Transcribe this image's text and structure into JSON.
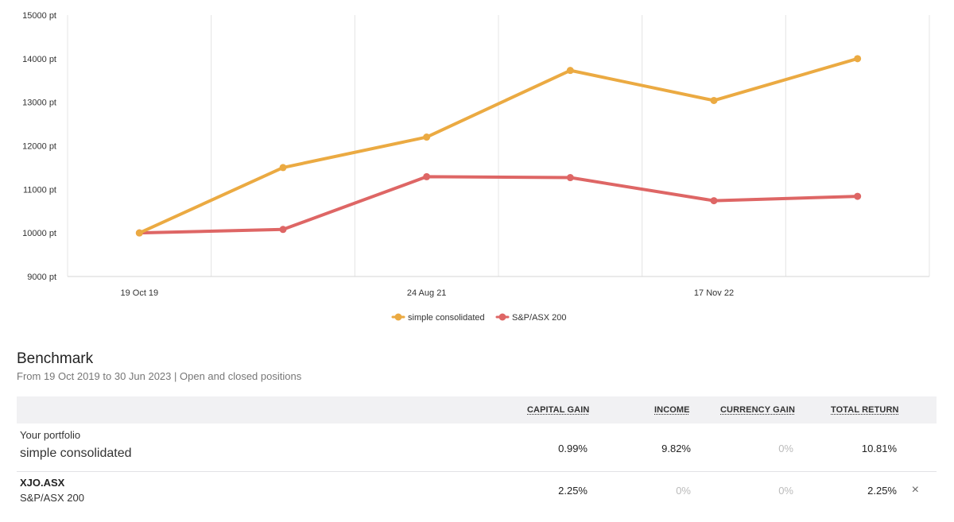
{
  "chart_data": {
    "type": "line",
    "categories": [
      "19 Oct 19",
      "",
      "24 Aug 21",
      "",
      "17 Nov 22",
      ""
    ],
    "series": [
      {
        "name": "simple consolidated",
        "color": "#EBAA42",
        "values": [
          10000,
          11500,
          12200,
          13730,
          13040,
          14000
        ]
      },
      {
        "name": "S&P/ASX 200",
        "color": "#DE6665",
        "values": [
          10000,
          10080,
          11290,
          11270,
          10740,
          10840
        ]
      }
    ],
    "ylim": [
      9000,
      15000
    ],
    "yticks": [
      15000,
      14000,
      13000,
      12000,
      11000,
      10000,
      9000
    ],
    "ytick_labels": [
      "15000 pt",
      "14000 pt",
      "13000 pt",
      "12000 pt",
      "11000 pt",
      "10000 pt",
      "9000 pt"
    ],
    "xlabels": [
      "19 Oct 19",
      "24 Aug 21",
      "17 Nov 22"
    ],
    "grid": true,
    "legend": "bottom-center"
  },
  "benchmark": {
    "title": "Benchmark",
    "subtitle": "From 19 Oct 2019 to 30 Jun 2023 | Open and closed positions",
    "columns": [
      "CAPITAL GAIN",
      "INCOME",
      "CURRENCY GAIN",
      "TOTAL RETURN"
    ],
    "rows": [
      {
        "label_top": "Your portfolio",
        "label_bottom": "simple consolidated",
        "capital_gain": "0.99%",
        "income": "9.82%",
        "currency_gain": "0%",
        "total_return": "10.81%"
      },
      {
        "label_top": "XJO.ASX",
        "label_bottom": "S&P/ASX 200",
        "capital_gain": "2.25%",
        "income": "0%",
        "currency_gain": "0%",
        "total_return": "2.25%",
        "remove_icon": "×"
      }
    ]
  }
}
